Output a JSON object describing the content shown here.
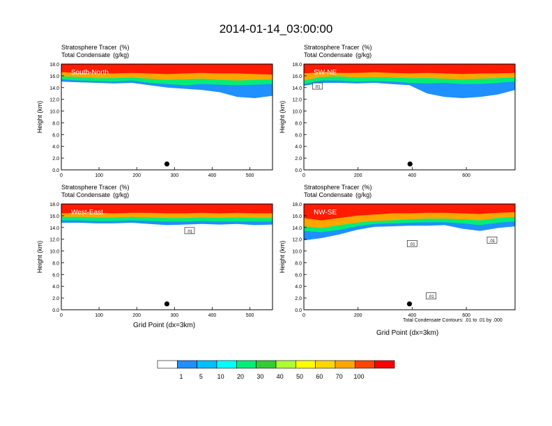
{
  "title": "2014-01-14_03:00:00",
  "panel_header": {
    "line1_label": "Stratosphere Tracer",
    "line1_units": "(%)",
    "line2_label": "Total Condensate",
    "line2_units": "(g/kg)"
  },
  "x_axis_title": "Grid Point (dx=3km)",
  "y_axis_title": "Height (km)",
  "contour_note": "Total Condensate Contours: .01 to .01 by .000",
  "colorbar": {
    "labels": [
      "1",
      "5",
      "10",
      "20",
      "30",
      "40",
      "50",
      "60",
      "70",
      "100"
    ],
    "colors": [
      "#ffffff",
      "#1e90ff",
      "#00bfff",
      "#00ffff",
      "#00ee76",
      "#32cd32",
      "#adff2f",
      "#ffff00",
      "#ffd700",
      "#ffa500",
      "#ff4500",
      "#ff0000"
    ]
  },
  "chart_data": [
    {
      "type": "heatmap",
      "section": "South-North",
      "xlim": [
        0,
        560
      ],
      "ylim": [
        0,
        18
      ],
      "xticks": [
        "0",
        "100",
        "200",
        "300",
        "400",
        "500"
      ],
      "xtick_values": [
        0,
        100,
        200,
        300,
        400,
        500
      ],
      "yticks": [
        "0.0",
        "2.0",
        "4.0",
        "6.0",
        "8.0",
        "10.0",
        "12.0",
        "14.0",
        "16.0",
        "18.0"
      ],
      "marker": {
        "x": 280,
        "y": 1.0
      },
      "contour_labels": [],
      "tracer_layers": [
        {
          "level": "100",
          "bottom": [
            16.6,
            16.5,
            16.4,
            16.4,
            16.5,
            16.4,
            16.3,
            16.4,
            16.5,
            16.4,
            16.4,
            16.3,
            16.2
          ]
        },
        {
          "level": "40",
          "bottom": [
            15.9,
            15.8,
            15.6,
            15.6,
            15.7,
            15.5,
            15.3,
            15.4,
            15.5,
            15.3,
            15.2,
            15.3,
            15.4
          ]
        },
        {
          "level": "10",
          "bottom": [
            15.4,
            15.2,
            15.1,
            15.0,
            15.2,
            14.8,
            14.6,
            14.4,
            14.6,
            14.5,
            14.4,
            14.5,
            14.6
          ]
        },
        {
          "level": "1",
          "bottom": [
            15.0,
            14.9,
            14.8,
            14.7,
            14.8,
            14.4,
            14.0,
            13.8,
            13.6,
            13.2,
            12.4,
            12.2,
            12.6
          ]
        }
      ]
    },
    {
      "type": "heatmap",
      "section": "SW-NE",
      "xlim": [
        0,
        780
      ],
      "ylim": [
        0,
        18
      ],
      "xticks": [
        "0",
        "200",
        "400",
        "600"
      ],
      "xtick_values": [
        0,
        200,
        400,
        600
      ],
      "yticks": [
        "0.0",
        "2.0",
        "4.0",
        "6.0",
        "8.0",
        "10.0",
        "12.0",
        "14.0",
        "16.0",
        "18.0"
      ],
      "marker": {
        "x": 392,
        "y": 1.0
      },
      "contour_labels": [
        {
          "text": ".01",
          "x": 50,
          "y": 14.2
        }
      ],
      "tracer_layers": [
        {
          "level": "100",
          "bottom": [
            16.4,
            16.6,
            16.5,
            16.5,
            16.6,
            16.5,
            16.4,
            16.5,
            16.4,
            16.3,
            16.4,
            16.4,
            16.5
          ]
        },
        {
          "level": "40",
          "bottom": [
            15.2,
            15.8,
            15.9,
            15.7,
            15.8,
            15.7,
            15.6,
            15.6,
            15.5,
            15.4,
            15.5,
            15.6,
            15.7
          ]
        },
        {
          "level": "10",
          "bottom": [
            14.6,
            15.2,
            15.2,
            15.0,
            15.1,
            15.0,
            14.8,
            14.7,
            14.8,
            14.6,
            14.6,
            14.8,
            15.0
          ]
        },
        {
          "level": "1",
          "bottom": [
            14.3,
            14.8,
            14.8,
            14.7,
            14.8,
            14.6,
            14.4,
            13.0,
            12.4,
            12.2,
            12.4,
            12.8,
            13.6
          ]
        }
      ]
    },
    {
      "type": "heatmap",
      "section": "West-East",
      "xlim": [
        0,
        560
      ],
      "ylim": [
        0,
        18
      ],
      "xticks": [
        "0",
        "100",
        "200",
        "300",
        "400",
        "500"
      ],
      "xtick_values": [
        0,
        100,
        200,
        300,
        400,
        500
      ],
      "yticks": [
        "0.0",
        "2.0",
        "4.0",
        "6.0",
        "8.0",
        "10.0",
        "12.0",
        "14.0",
        "16.0",
        "18.0"
      ],
      "marker": {
        "x": 280,
        "y": 1.0
      },
      "contour_labels": [
        {
          "text": ".01",
          "x": 340,
          "y": 13.4
        }
      ],
      "tracer_layers": [
        {
          "level": "100",
          "bottom": [
            16.4,
            16.5,
            16.5,
            16.4,
            16.5,
            16.5,
            16.4,
            16.4,
            16.5,
            16.4,
            16.5,
            16.4,
            16.4
          ]
        },
        {
          "level": "40",
          "bottom": [
            15.8,
            15.8,
            15.7,
            15.7,
            15.8,
            15.7,
            15.6,
            15.6,
            15.7,
            15.6,
            15.7,
            15.6,
            15.6
          ]
        },
        {
          "level": "10",
          "bottom": [
            15.2,
            15.2,
            15.1,
            15.1,
            15.2,
            15.1,
            15.0,
            15.0,
            15.1,
            15.0,
            15.0,
            15.0,
            15.0
          ]
        },
        {
          "level": "1",
          "bottom": [
            14.8,
            14.8,
            14.7,
            14.7,
            14.8,
            14.6,
            14.4,
            14.5,
            14.6,
            14.5,
            14.6,
            14.4,
            14.5
          ]
        }
      ]
    },
    {
      "type": "heatmap",
      "section": "NW-SE",
      "xlim": [
        0,
        780
      ],
      "ylim": [
        0,
        18
      ],
      "xticks": [
        "0",
        "200",
        "400",
        "600"
      ],
      "xtick_values": [
        0,
        200,
        400,
        600
      ],
      "yticks": [
        "0.0",
        "2.0",
        "4.0",
        "6.0",
        "8.0",
        "10.0",
        "12.0",
        "14.0",
        "16.0",
        "18.0"
      ],
      "marker": {
        "x": 390,
        "y": 1.0
      },
      "contour_labels": [
        {
          "text": ".01",
          "x": 400,
          "y": 11.2
        },
        {
          "text": ".01",
          "x": 695,
          "y": 11.8
        },
        {
          "text": ".01",
          "x": 470,
          "y": 2.3
        }
      ],
      "tracer_layers": [
        {
          "level": "100",
          "bottom": [
            15.6,
            15.2,
            15.6,
            16.0,
            16.2,
            16.4,
            16.4,
            16.5,
            16.5,
            16.4,
            16.3,
            16.5,
            16.6
          ]
        },
        {
          "level": "40",
          "bottom": [
            14.2,
            13.9,
            14.4,
            14.8,
            15.1,
            15.2,
            15.4,
            15.5,
            15.5,
            15.4,
            15.2,
            15.6,
            15.8
          ]
        },
        {
          "level": "10",
          "bottom": [
            13.4,
            13.2,
            13.6,
            14.2,
            14.6,
            14.7,
            14.8,
            14.9,
            14.9,
            14.7,
            14.4,
            14.8,
            15.0
          ]
        },
        {
          "level": "1",
          "bottom": [
            11.8,
            12.2,
            12.8,
            13.6,
            14.1,
            14.2,
            14.3,
            14.3,
            14.4,
            13.8,
            13.4,
            13.9,
            14.2
          ]
        }
      ]
    }
  ]
}
